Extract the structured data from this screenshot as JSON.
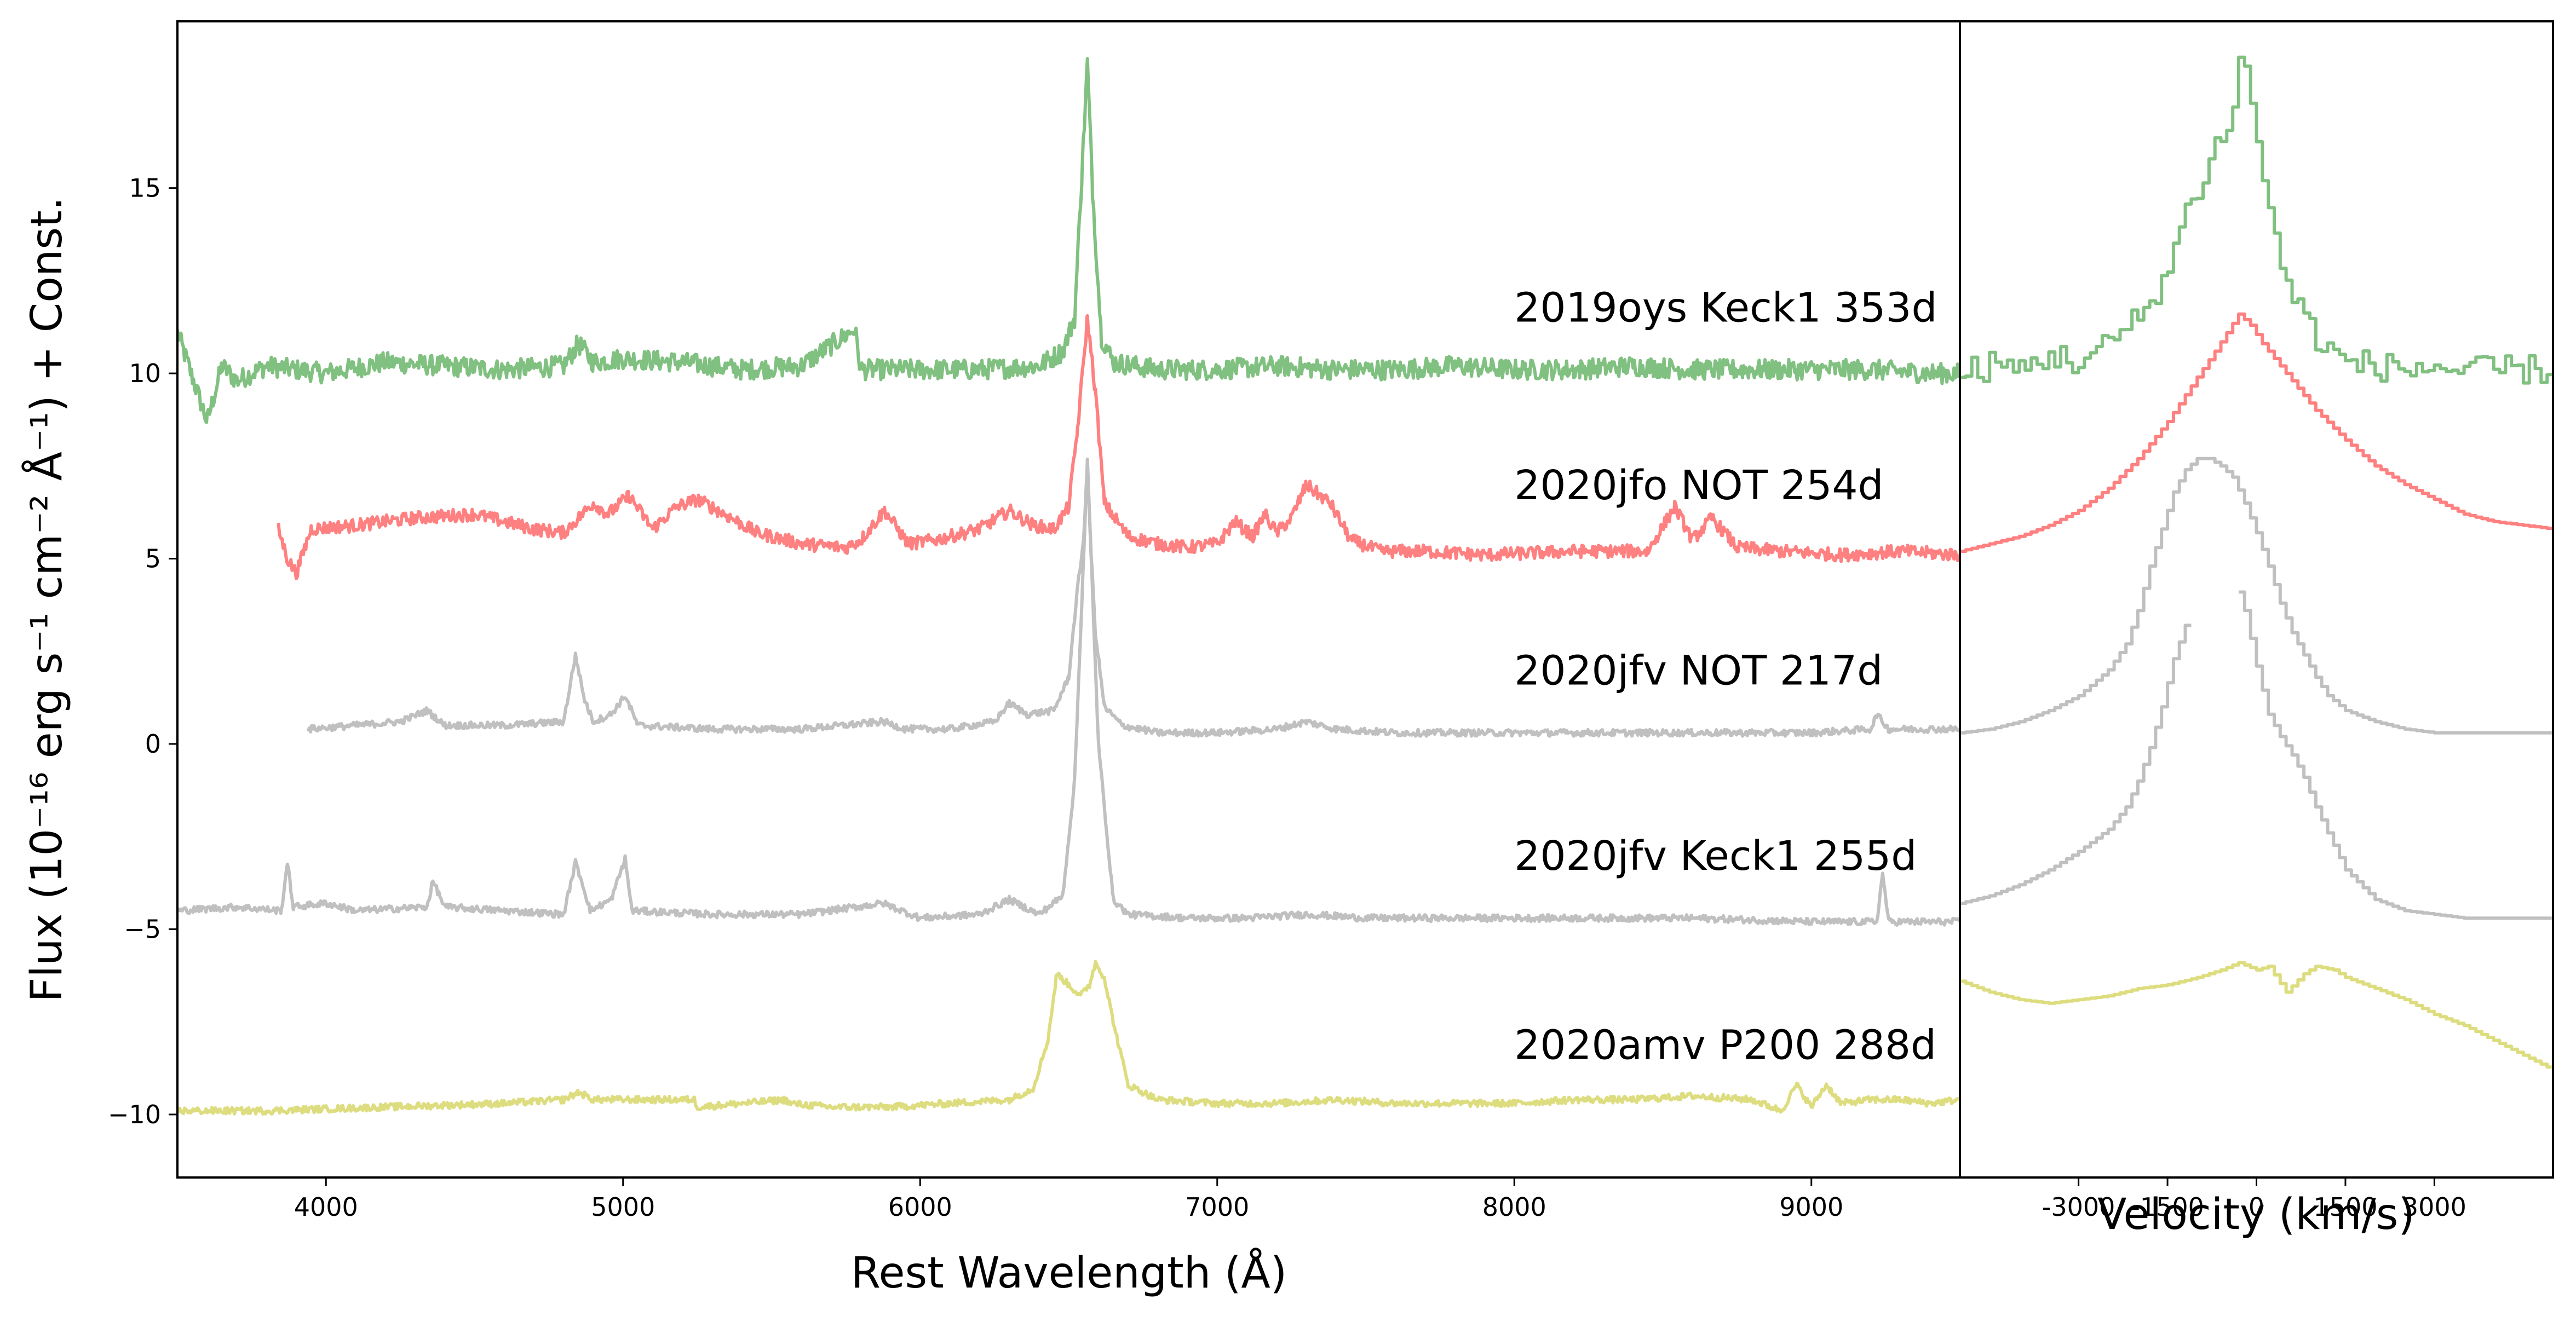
{
  "chart_data": [
    {
      "type": "line",
      "panel": "left",
      "xlabel": "Rest Wavelength (Å)",
      "ylabel": "Flux (10⁻¹⁶ erg s⁻¹ cm⁻² Å⁻¹) + Const.",
      "xlim": [
        3500,
        9500
      ],
      "ylim": [
        -11.7,
        19.5
      ],
      "xticks": [
        4000,
        5000,
        6000,
        7000,
        8000,
        9000
      ],
      "xtick_labels": [
        "4000",
        "5000",
        "6000",
        "7000",
        "8000",
        "9000"
      ],
      "yticks": [
        -10,
        -5,
        0,
        5,
        10,
        15
      ],
      "ytick_labels": [
        "−10",
        "−5",
        "0",
        "5",
        "10",
        "15"
      ],
      "grid": false,
      "series": [
        {
          "name": "2019oys Keck1 353d",
          "color": "#80c080",
          "x": [
            3500,
            3550,
            3600,
            3650,
            3700,
            3800,
            3900,
            4000,
            4200,
            4400,
            4600,
            4800,
            4850,
            4900,
            5000,
            5200,
            5400,
            5600,
            5780,
            5800,
            6000,
            6200,
            6400,
            6480,
            6520,
            6545,
            6563,
            6580,
            6610,
            6650,
            6800,
            7000,
            7200,
            7400,
            7600,
            7800,
            8000,
            8200,
            8400,
            8600,
            8800,
            9000,
            9200,
            9400,
            9500
          ],
          "y": [
            11.1,
            9.9,
            8.7,
            10.2,
            9.8,
            10.2,
            10.1,
            10.0,
            10.3,
            10.2,
            10.1,
            10.2,
            10.8,
            10.3,
            10.4,
            10.3,
            10.1,
            10.2,
            11.2,
            10.1,
            10.1,
            10.1,
            10.2,
            10.6,
            11.5,
            15.5,
            18.4,
            15.0,
            11.0,
            10.3,
            10.1,
            10.1,
            10.2,
            10.1,
            10.1,
            10.2,
            10.1,
            10.1,
            10.2,
            10.1,
            10.1,
            10.1,
            10.1,
            10.0,
            10.0
          ]
        },
        {
          "name": "2020jfo NOT 254d",
          "color": "#ff8080",
          "x": [
            3840,
            3870,
            3900,
            3950,
            4100,
            4300,
            4500,
            4700,
            4800,
            4900,
            4950,
            5020,
            5100,
            5180,
            5250,
            5320,
            5450,
            5600,
            5750,
            5800,
            5880,
            5960,
            6050,
            6200,
            6300,
            6380,
            6450,
            6500,
            6530,
            6563,
            6590,
            6620,
            6700,
            6800,
            6900,
            7000,
            7060,
            7120,
            7160,
            7200,
            7250,
            7300,
            7330,
            7380,
            7450,
            7550,
            7700,
            7900,
            8200,
            8450,
            8540,
            8600,
            8665,
            8750,
            8900,
            9100,
            9300,
            9500
          ],
          "y": [
            5.8,
            5.0,
            4.6,
            5.8,
            5.9,
            6.1,
            6.2,
            5.8,
            5.7,
            6.5,
            6.2,
            6.7,
            5.8,
            6.4,
            6.6,
            6.3,
            5.7,
            5.4,
            5.3,
            5.5,
            6.3,
            5.4,
            5.5,
            5.8,
            6.3,
            5.9,
            5.8,
            6.4,
            8.5,
            11.5,
            9.5,
            6.5,
            5.6,
            5.4,
            5.3,
            5.4,
            6.0,
            5.6,
            6.2,
            5.7,
            6.1,
            7.0,
            6.8,
            6.5,
            5.5,
            5.2,
            5.2,
            5.1,
            5.2,
            5.2,
            6.4,
            5.5,
            6.1,
            5.3,
            5.2,
            5.1,
            5.2,
            5.1
          ]
        },
        {
          "name": "2020jfv NOT 217d",
          "color": "#c0c0c0",
          "x": [
            3940,
            4100,
            4250,
            4340,
            4400,
            4600,
            4800,
            4840,
            4870,
            4900,
            4960,
            5007,
            5050,
            5300,
            5600,
            5876,
            5950,
            6100,
            6250,
            6300,
            6360,
            6450,
            6500,
            6530,
            6550,
            6563,
            6575,
            6590,
            6620,
            6680,
            6800,
            7000,
            7200,
            7300,
            7400,
            7600,
            7800,
            8000,
            8200,
            8500,
            8800,
            9000,
            9200,
            9220,
            9260,
            9400,
            9500
          ],
          "y": [
            0.4,
            0.5,
            0.6,
            0.9,
            0.5,
            0.5,
            0.6,
            2.4,
            1.2,
            0.6,
            0.8,
            1.3,
            0.5,
            0.4,
            0.4,
            0.6,
            0.4,
            0.4,
            0.6,
            1.1,
            0.8,
            0.9,
            1.8,
            4.2,
            5.5,
            7.6,
            5.2,
            3.0,
            1.0,
            0.5,
            0.3,
            0.3,
            0.4,
            0.6,
            0.4,
            0.3,
            0.3,
            0.3,
            0.3,
            0.3,
            0.3,
            0.3,
            0.4,
            0.8,
            0.4,
            0.4,
            0.4
          ]
        },
        {
          "name": "2020jfv Keck1 255d",
          "color": "#c0c0c0",
          "x": [
            3500,
            3700,
            3850,
            3870,
            3890,
            4000,
            4100,
            4340,
            4360,
            4400,
            4600,
            4800,
            4840,
            4861,
            4890,
            4960,
            5007,
            5030,
            5300,
            5600,
            5876,
            6000,
            6200,
            6300,
            6400,
            6480,
            6520,
            6550,
            6563,
            6576,
            6600,
            6650,
            6700,
            6900,
            7100,
            7300,
            7500,
            7800,
            8000,
            8300,
            8600,
            9000,
            9220,
            9240,
            9260,
            9400,
            9500
          ],
          "y": [
            -4.5,
            -4.4,
            -4.5,
            -3.2,
            -4.4,
            -4.3,
            -4.5,
            -4.4,
            -3.7,
            -4.4,
            -4.5,
            -4.6,
            -3.2,
            -3.7,
            -4.5,
            -4.2,
            -3.1,
            -4.5,
            -4.6,
            -4.6,
            -4.3,
            -4.7,
            -4.6,
            -4.2,
            -4.6,
            -4.1,
            -1.0,
            5.0,
            7.6,
            5.0,
            0.0,
            -4.2,
            -4.6,
            -4.7,
            -4.7,
            -4.6,
            -4.7,
            -4.7,
            -4.7,
            -4.7,
            -4.7,
            -4.8,
            -4.8,
            -3.5,
            -4.8,
            -4.8,
            -4.8
          ]
        },
        {
          "name": "2020amv P200 288d",
          "color": "#dddd80",
          "x": [
            3500,
            3800,
            4200,
            4600,
            4800,
            4850,
            4900,
            5000,
            5240,
            5250,
            5550,
            5560,
            5700,
            5900,
            6100,
            6300,
            6380,
            6430,
            6460,
            6500,
            6540,
            6570,
            6590,
            6620,
            6650,
            6700,
            6800,
            7000,
            7200,
            7400,
            7600,
            7800,
            8000,
            8200,
            8400,
            8600,
            8800,
            8900,
            8950,
            9000,
            9050,
            9100,
            9200,
            9300,
            9400,
            9500
          ],
          "y": [
            -9.9,
            -9.9,
            -9.8,
            -9.7,
            -9.6,
            -9.4,
            -9.6,
            -9.6,
            -9.6,
            -9.8,
            -9.6,
            -9.7,
            -9.8,
            -9.8,
            -9.7,
            -9.6,
            -9.3,
            -8.0,
            -6.2,
            -6.5,
            -6.8,
            -6.5,
            -5.9,
            -6.3,
            -7.5,
            -9.2,
            -9.6,
            -9.7,
            -9.7,
            -9.6,
            -9.7,
            -9.7,
            -9.7,
            -9.6,
            -9.6,
            -9.5,
            -9.6,
            -9.9,
            -9.2,
            -9.8,
            -9.2,
            -9.7,
            -9.6,
            -9.6,
            -9.7,
            -9.6
          ]
        }
      ],
      "annotations": [
        {
          "text": "2019oys Keck1 353d",
          "x": 8000,
          "y": 11.4
        },
        {
          "text": "2020jfo NOT 254d",
          "x": 8000,
          "y": 6.6
        },
        {
          "text": "2020jfv NOT 217d",
          "x": 8000,
          "y": 1.6
        },
        {
          "text": "2020jfv Keck1 255d",
          "x": 8000,
          "y": -3.4
        },
        {
          "text": "2020amv P200 288d",
          "x": 8000,
          "y": -8.5
        }
      ]
    },
    {
      "type": "line",
      "panel": "right",
      "step": true,
      "xlabel": "Velocity (km/s)",
      "xlim": [
        -5000,
        5000
      ],
      "ylim": [
        -11.7,
        19.5
      ],
      "xticks": [
        -3000,
        -1500,
        0,
        1500,
        3000
      ],
      "xtick_labels": [
        "-3000",
        "-1500",
        "0",
        "1500",
        "3000"
      ],
      "grid": false,
      "series": [
        {
          "name": "2019oys Keck1 353d",
          "color": "#80c080",
          "x": [
            -5000,
            -4500,
            -4000,
            -3500,
            -3000,
            -2500,
            -2000,
            -1500,
            -1300,
            -1000,
            -800,
            -600,
            -400,
            -300,
            -200,
            -100,
            0,
            200,
            400,
            600,
            800,
            1000,
            1200,
            1500,
            2000,
            2500,
            3000,
            3500,
            4000,
            4500,
            5000
          ],
          "y": [
            10.0,
            10.2,
            10.1,
            10.5,
            10.3,
            10.8,
            11.5,
            12.8,
            14.0,
            15.0,
            15.8,
            16.5,
            17.0,
            18.4,
            18.3,
            17.5,
            16.0,
            14.5,
            13.0,
            12.0,
            11.5,
            11.0,
            10.6,
            10.3,
            10.2,
            10.1,
            10.2,
            10.0,
            10.1,
            10.1,
            10.1
          ]
        },
        {
          "name": "2020jfo NOT 254d",
          "color": "#ff8080",
          "x": [
            -5000,
            -4500,
            -4000,
            -3500,
            -3000,
            -2500,
            -2000,
            -1500,
            -1000,
            -700,
            -500,
            -300,
            -100,
            100,
            400,
            700,
            1000,
            1500,
            2000,
            2500,
            3000,
            3500,
            4000,
            4500,
            5000
          ],
          "y": [
            5.2,
            5.4,
            5.6,
            5.9,
            6.3,
            6.9,
            7.7,
            8.7,
            9.9,
            10.6,
            11.1,
            11.6,
            11.3,
            10.8,
            10.2,
            9.6,
            9.0,
            8.2,
            7.5,
            7.0,
            6.6,
            6.2,
            6.0,
            5.9,
            5.8
          ]
        },
        {
          "name": "2020jfv NOT 217d",
          "color": "#c0c0c0",
          "x": [
            -5000,
            -4500,
            -4000,
            -3500,
            -3000,
            -2500,
            -2200,
            -2000,
            -1800,
            -1600,
            -1400,
            -1200,
            -1000,
            -800,
            -600,
            -400,
            -200,
            0,
            200,
            400,
            600,
            800,
            1000,
            1200,
            1500,
            2000,
            2500,
            3000,
            3500,
            4000,
            4500,
            5000
          ],
          "y": [
            0.3,
            0.4,
            0.6,
            0.9,
            1.3,
            2.0,
            2.7,
            3.6,
            4.8,
            5.8,
            6.8,
            7.4,
            7.7,
            7.7,
            7.5,
            7.2,
            6.5,
            5.7,
            4.8,
            3.8,
            3.0,
            2.4,
            1.8,
            1.3,
            0.9,
            0.6,
            0.4,
            0.3,
            0.3,
            0.3,
            0.3,
            0.3
          ]
        },
        {
          "name": "2020jfv Keck1 255d",
          "color": "#c0c0c0",
          "x": [
            -5000,
            -4500,
            -4000,
            -3500,
            -3000,
            -2500,
            -2200,
            -2000,
            -1800,
            -1600,
            -1400,
            -1200,
            -1100,
            -1099,
            -300,
            -299,
            -200,
            0,
            200,
            400,
            600,
            800,
            1000,
            1200,
            1500,
            2000,
            2500,
            3000,
            3500,
            4000,
            4500,
            5000
          ],
          "y": [
            -4.3,
            -4.1,
            -3.8,
            -3.4,
            -2.9,
            -2.3,
            -1.7,
            -1.0,
            -0.1,
            1.0,
            2.3,
            3.2,
            3.7,
            null,
            null,
            4.1,
            3.6,
            2.1,
            0.8,
            0.2,
            -0.3,
            -0.9,
            -1.7,
            -2.4,
            -3.4,
            -4.2,
            -4.5,
            -4.6,
            -4.7,
            -4.7,
            -4.7,
            -4.7
          ]
        },
        {
          "name": "2020amv P200 288d",
          "color": "#dddd80",
          "x": [
            -5000,
            -4500,
            -4000,
            -3500,
            -3000,
            -2500,
            -2000,
            -1500,
            -1000,
            -600,
            -300,
            0,
            200,
            500,
            800,
            1000,
            1300,
            1500,
            2000,
            2500,
            3000,
            3500,
            4000,
            4500,
            5000
          ],
          "y": [
            -6.4,
            -6.7,
            -6.9,
            -7.0,
            -6.9,
            -6.8,
            -6.6,
            -6.5,
            -6.3,
            -6.1,
            -5.9,
            -6.1,
            -6.0,
            -6.7,
            -6.2,
            -6.0,
            -6.1,
            -6.3,
            -6.6,
            -6.9,
            -7.3,
            -7.6,
            -8.0,
            -8.4,
            -8.8
          ]
        }
      ]
    }
  ]
}
